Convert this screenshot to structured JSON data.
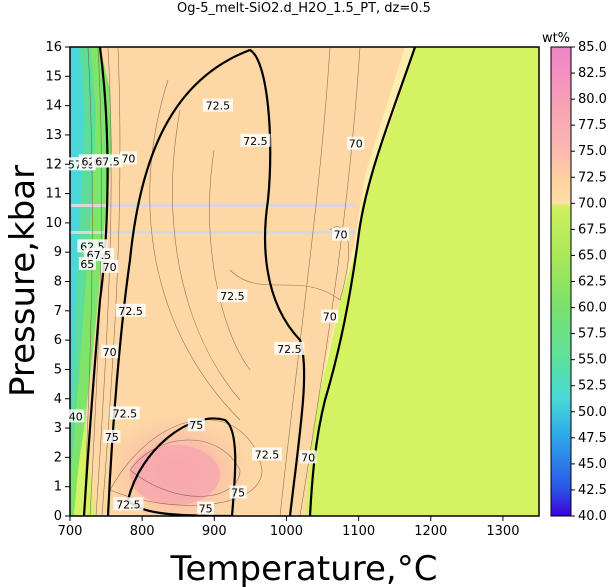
{
  "chart_data": {
    "type": "heatmap",
    "title": "Og-5_melt-SiO2.d_H2O_1.5_PT, dz=0.5",
    "xlabel": "Temperature,°C",
    "ylabel": "Pressure,kbar",
    "xlim": [
      700,
      1350
    ],
    "ylim": [
      0,
      16
    ],
    "x_ticks": [
      "700",
      "800",
      "900",
      "1000",
      "1100",
      "1200",
      "1300"
    ],
    "y_ticks": [
      "0",
      "1",
      "2",
      "3",
      "4",
      "5",
      "6",
      "7",
      "8",
      "9",
      "10",
      "11",
      "12",
      "13",
      "14",
      "15",
      "16"
    ],
    "colorbar": {
      "unit": "wt%",
      "range": [
        40,
        85
      ],
      "ticks": [
        "40.0",
        "42.5",
        "45.0",
        "47.5",
        "50.0",
        "52.5",
        "55.0",
        "57.5",
        "60.0",
        "62.5",
        "65.0",
        "67.5",
        "70.0",
        "72.5",
        "75.0",
        "77.5",
        "80.0",
        "82.5",
        "85.0"
      ]
    },
    "contour_labels": [
      {
        "text": "72.5",
        "x": 905,
        "y": 14.0
      },
      {
        "text": "72.5",
        "x": 957,
        "y": 12.8
      },
      {
        "text": "70",
        "x": 1096,
        "y": 12.7
      },
      {
        "text": "57.5",
        "x": 714,
        "y": 12.0
      },
      {
        "text": "60",
        "x": 724,
        "y": 12.0
      },
      {
        "text": "62.5",
        "x": 733,
        "y": 12.1
      },
      {
        "text": "65",
        "x": 742,
        "y": 12.1
      },
      {
        "text": "67.5",
        "x": 752,
        "y": 12.1
      },
      {
        "text": "70",
        "x": 781,
        "y": 12.2
      },
      {
        "text": "70",
        "x": 1075,
        "y": 9.6
      },
      {
        "text": "62.5",
        "x": 731,
        "y": 9.2
      },
      {
        "text": "67.5",
        "x": 740,
        "y": 8.9
      },
      {
        "text": "65",
        "x": 724,
        "y": 8.6
      },
      {
        "text": "70",
        "x": 755,
        "y": 8.5
      },
      {
        "text": "72.5",
        "x": 925,
        "y": 7.5
      },
      {
        "text": "72.5",
        "x": 784,
        "y": 7.0
      },
      {
        "text": "72.5",
        "x": 1004,
        "y": 5.7
      },
      {
        "text": "70",
        "x": 1060,
        "y": 6.8
      },
      {
        "text": "70",
        "x": 755,
        "y": 5.6
      },
      {
        "text": "72.5",
        "x": 776,
        "y": 3.5
      },
      {
        "text": "40",
        "x": 708,
        "y": 3.4
      },
      {
        "text": "75",
        "x": 875,
        "y": 3.1
      },
      {
        "text": "75",
        "x": 758,
        "y": 2.7
      },
      {
        "text": "72.5",
        "x": 973,
        "y": 2.1
      },
      {
        "text": "70",
        "x": 1030,
        "y": 2.0
      },
      {
        "text": "75",
        "x": 933,
        "y": 0.8
      },
      {
        "text": "72.5",
        "x": 781,
        "y": 0.4
      },
      {
        "text": "75",
        "x": 888,
        "y": 0.25
      }
    ]
  },
  "colors": {
    "colorbar_stops": [
      "#3c00d8",
      "#2c56e8",
      "#2ea8e6",
      "#4ad8d8",
      "#5ce0a0",
      "#78e070",
      "#a8e858",
      "#d0f060",
      "#fde0a8",
      "#fdd0a0",
      "#fbb8b0",
      "#f9a6b4",
      "#f490c0",
      "#ee86c8"
    ]
  }
}
